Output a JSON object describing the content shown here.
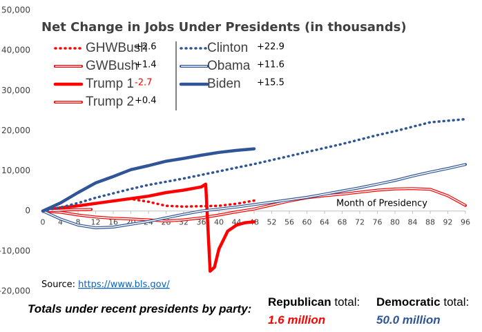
{
  "chart_data": {
    "type": "line",
    "title": "Net Change in Jobs Under Presidents (in thousands)",
    "x_label": "Month of Presidency",
    "xlim": [
      0,
      96
    ],
    "xticks": [
      0,
      4,
      8,
      12,
      16,
      20,
      24,
      28,
      32,
      36,
      40,
      44,
      48,
      52,
      56,
      60,
      64,
      68,
      72,
      76,
      80,
      84,
      88,
      92,
      96
    ],
    "ylim": [
      -20000,
      50000
    ],
    "yticks": [
      {
        "value": -20000,
        "label": "-20,000"
      },
      {
        "value": -10000,
        "label": "-10,000"
      },
      0,
      {
        "value": 10000,
        "label": "10,000"
      },
      {
        "value": 20000,
        "label": "20,000"
      },
      {
        "value": 30000,
        "label": "30,000"
      },
      {
        "value": 40000,
        "label": "40,000"
      },
      {
        "value": 50000,
        "label": "50,000"
      }
    ],
    "grid": false,
    "series": [
      {
        "name": "GHWBush",
        "net_change": "+2.6",
        "color": "#ff0000",
        "line_style": "dotted",
        "x": [
          0,
          4,
          8,
          12,
          16,
          20,
          24,
          28,
          32,
          36,
          40,
          44,
          48
        ],
        "values": [
          0,
          900,
          1200,
          1800,
          2500,
          3000,
          2300,
          1300,
          1100,
          1200,
          1300,
          1800,
          2600
        ]
      },
      {
        "name": "GWBush",
        "net_change": "+1.4",
        "color": "#ff0000",
        "line_style": "double",
        "x": [
          0,
          4,
          8,
          12,
          16,
          20,
          24,
          28,
          32,
          36,
          40,
          44,
          48,
          52,
          56,
          60,
          64,
          68,
          72,
          76,
          80,
          84,
          88,
          92,
          96
        ],
        "values": [
          0,
          -300,
          -1000,
          -1500,
          -1800,
          -2000,
          -2200,
          -2500,
          -2200,
          -1700,
          -1000,
          -200,
          500,
          1500,
          2500,
          3300,
          3800,
          4200,
          4700,
          5200,
          5500,
          5600,
          5400,
          3800,
          1400
        ]
      },
      {
        "name": "Trump 1",
        "net_change": "-2.7",
        "color": "#ff0000",
        "line_style": "thick",
        "x": [
          0,
          4,
          8,
          12,
          16,
          20,
          24,
          28,
          32,
          36,
          37,
          38,
          39,
          40,
          42,
          44,
          46,
          48
        ],
        "values": [
          0,
          800,
          1300,
          1900,
          2500,
          3100,
          3700,
          4600,
          5200,
          6000,
          6700,
          -15000,
          -14000,
          -9500,
          -5000,
          -3500,
          -2900,
          -2700
        ]
      },
      {
        "name": "Trump 2",
        "net_change": "+0.4",
        "color": "#ff0000",
        "line_style": "double",
        "x": [
          0,
          2,
          4,
          6,
          8,
          10,
          11
        ],
        "values": [
          0,
          100,
          200,
          300,
          350,
          380,
          400
        ]
      },
      {
        "name": "Clinton",
        "net_change": "+22.9",
        "color": "#2f5597",
        "line_style": "dotted",
        "x": [
          0,
          4,
          8,
          12,
          16,
          20,
          24,
          28,
          32,
          36,
          40,
          44,
          48,
          52,
          56,
          60,
          64,
          68,
          72,
          76,
          80,
          84,
          88,
          92,
          96
        ],
        "values": [
          0,
          900,
          2000,
          3300,
          4400,
          5500,
          6500,
          7300,
          8100,
          9000,
          9900,
          10800,
          11700,
          12700,
          13700,
          14700,
          15700,
          16700,
          17800,
          18900,
          19900,
          21000,
          22100,
          22500,
          22900
        ]
      },
      {
        "name": "Obama",
        "net_change": "+11.6",
        "color": "#2f5597",
        "line_style": "double",
        "x": [
          0,
          4,
          8,
          12,
          16,
          20,
          24,
          28,
          32,
          36,
          40,
          44,
          48,
          52,
          56,
          60,
          64,
          68,
          72,
          76,
          80,
          84,
          88,
          92,
          96
        ],
        "values": [
          0,
          -2000,
          -3500,
          -4200,
          -4000,
          -3300,
          -2600,
          -1700,
          -800,
          0,
          500,
          1000,
          1600,
          2200,
          2800,
          3400,
          4200,
          5000,
          5800,
          6700,
          7600,
          8700,
          9700,
          10600,
          11600
        ]
      },
      {
        "name": "Biden",
        "net_change": "+15.5",
        "color": "#2f5597",
        "line_style": "thick",
        "x": [
          0,
          4,
          8,
          12,
          16,
          20,
          24,
          28,
          32,
          36,
          40,
          44,
          48
        ],
        "values": [
          0,
          2000,
          4600,
          7000,
          8600,
          10300,
          11300,
          12400,
          13100,
          13900,
          14600,
          15100,
          15500
        ]
      }
    ],
    "source": {
      "label": "Source:",
      "url": "https://www.bls.gov/"
    },
    "footer": {
      "lead": "Totals under recent presidents by party:",
      "republican": {
        "party": "Republican",
        "suffix": "total:",
        "total": "1.6 million"
      },
      "democratic": {
        "party": "Democratic",
        "suffix": "total:",
        "total": "50.0 million"
      }
    }
  }
}
